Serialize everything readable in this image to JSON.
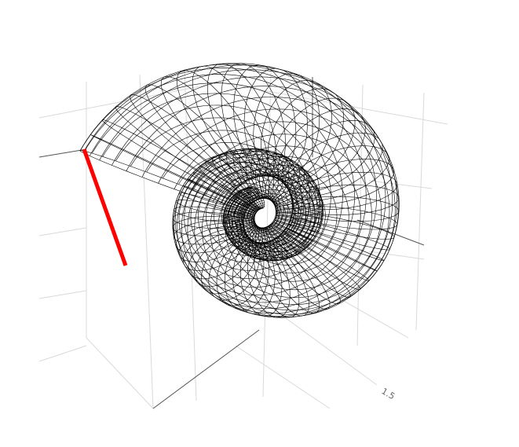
{
  "scene": {
    "tick_label": "1.5"
  }
}
